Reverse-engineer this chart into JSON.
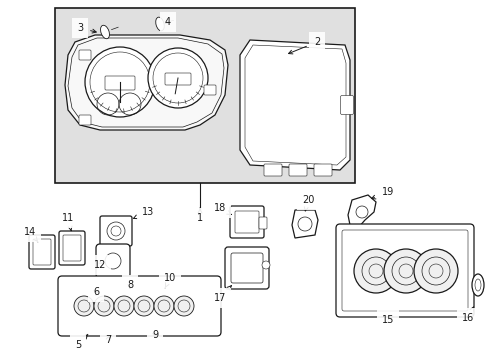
{
  "bg_color": "#ffffff",
  "box_bg": "#e0e0e0",
  "line_color": "#1a1a1a",
  "fig_width": 4.89,
  "fig_height": 3.6,
  "dpi": 100
}
